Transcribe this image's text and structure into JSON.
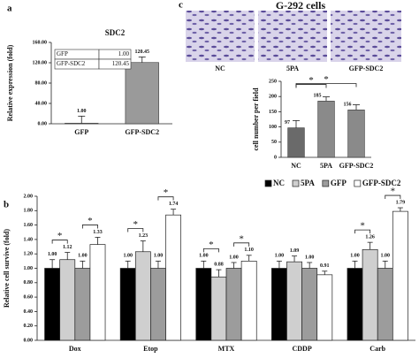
{
  "chart_data": [
    {
      "type": "bar",
      "panel": "a",
      "title": "SDC2",
      "ylabel": "Relative expression (fold)",
      "categories": [
        "GFP",
        "GFP-SDC2"
      ],
      "values": [
        1.0,
        120.45
      ],
      "value_labels": [
        "1.00",
        "120.45"
      ],
      "errors": [
        14,
        11
      ],
      "colors": [
        "#ffffff",
        "#9a9a9a"
      ],
      "ylim": [
        0,
        160
      ],
      "yticks": [
        {
          "value": 0,
          "label": "0.00"
        },
        {
          "value": 40,
          "label": "40.00"
        },
        {
          "value": 80,
          "label": "80.00"
        },
        {
          "value": 120,
          "label": "120.00"
        },
        {
          "value": 160,
          "label": "160.00"
        }
      ],
      "table": [
        [
          "GFP",
          "1.00"
        ],
        [
          "GFP-SDC2",
          "120.45"
        ]
      ]
    },
    {
      "type": "bar",
      "panel": "c",
      "title": "G-292 cells",
      "ylabel": "cell number per field",
      "image_labels": [
        "NC",
        "5PA",
        "GFP-SDC2"
      ],
      "categories": [
        "NC",
        "5PA",
        "GFP-SDC2"
      ],
      "values": [
        97,
        185,
        156
      ],
      "errors": [
        24,
        14,
        17
      ],
      "colors": [
        "#6a6a6a",
        "#8a8a8a",
        "#8a8a8a"
      ],
      "ylim": [
        0,
        250
      ],
      "yticks": [
        0,
        50,
        100,
        150,
        200,
        250
      ],
      "annotations": [
        "*",
        "*"
      ]
    },
    {
      "type": "grouped-bar",
      "panel": "b",
      "ylabel": "Relative cell survive (fold)",
      "legend": "upper right",
      "categories": [
        "Dox",
        "Etop",
        "MTX",
        "CDDP",
        "Carb"
      ],
      "series": [
        {
          "name": "NC",
          "color": "#000000",
          "values": [
            1.0,
            1.0,
            1.0,
            1.0,
            1.0
          ],
          "value_labels": [
            "1.00",
            "1.00",
            "1.00",
            "1.00",
            "1.00"
          ],
          "errors": [
            0.12,
            0.1,
            0.1,
            0.1,
            0.1
          ]
        },
        {
          "name": "5PA",
          "color": "#cfcfcf",
          "values": [
            1.12,
            1.23,
            0.88,
            1.09,
            1.26
          ],
          "value_labels": [
            "1.12",
            "1.23",
            "0.88",
            "1.09",
            "1.26"
          ],
          "errors": [
            0.1,
            0.15,
            0.1,
            0.08,
            0.1
          ]
        },
        {
          "name": "GFP",
          "color": "#9c9c9c",
          "values": [
            1.0,
            1.0,
            1.0,
            1.0,
            1.0
          ],
          "value_labels": [
            "1.00",
            "1.00",
            "1.00",
            "1.00",
            "1.00"
          ],
          "errors": [
            0.1,
            0.1,
            0.08,
            0.08,
            0.1
          ]
        },
        {
          "name": "GFP-SDC2",
          "color": "#ffffff",
          "values": [
            1.33,
            1.74,
            1.1,
            0.91,
            1.79
          ],
          "value_labels": [
            "1.33",
            "1.74",
            "1.10",
            "0.91",
            "1.79"
          ],
          "errors": [
            0.1,
            0.08,
            0.08,
            0.05,
            0.05
          ]
        }
      ],
      "ylim": [
        0,
        2
      ],
      "yticks": [
        {
          "value": 0,
          "label": "0.00"
        },
        {
          "value": 0.2,
          "label": "0.20"
        },
        {
          "value": 0.4,
          "label": "0.40"
        },
        {
          "value": 0.6,
          "label": "0.60"
        },
        {
          "value": 0.8,
          "label": "0.80"
        },
        {
          "value": 1,
          "label": "1.00"
        },
        {
          "value": 1.2,
          "label": "1.20"
        },
        {
          "value": 1.4,
          "label": "1.40"
        },
        {
          "value": 1.6,
          "label": "1.60"
        },
        {
          "value": 1.8,
          "label": "1.80"
        },
        {
          "value": 2,
          "label": "2.00"
        }
      ],
      "annotations": [
        "*",
        "*",
        "*",
        "*",
        "*",
        "*",
        "*",
        "*"
      ]
    }
  ]
}
